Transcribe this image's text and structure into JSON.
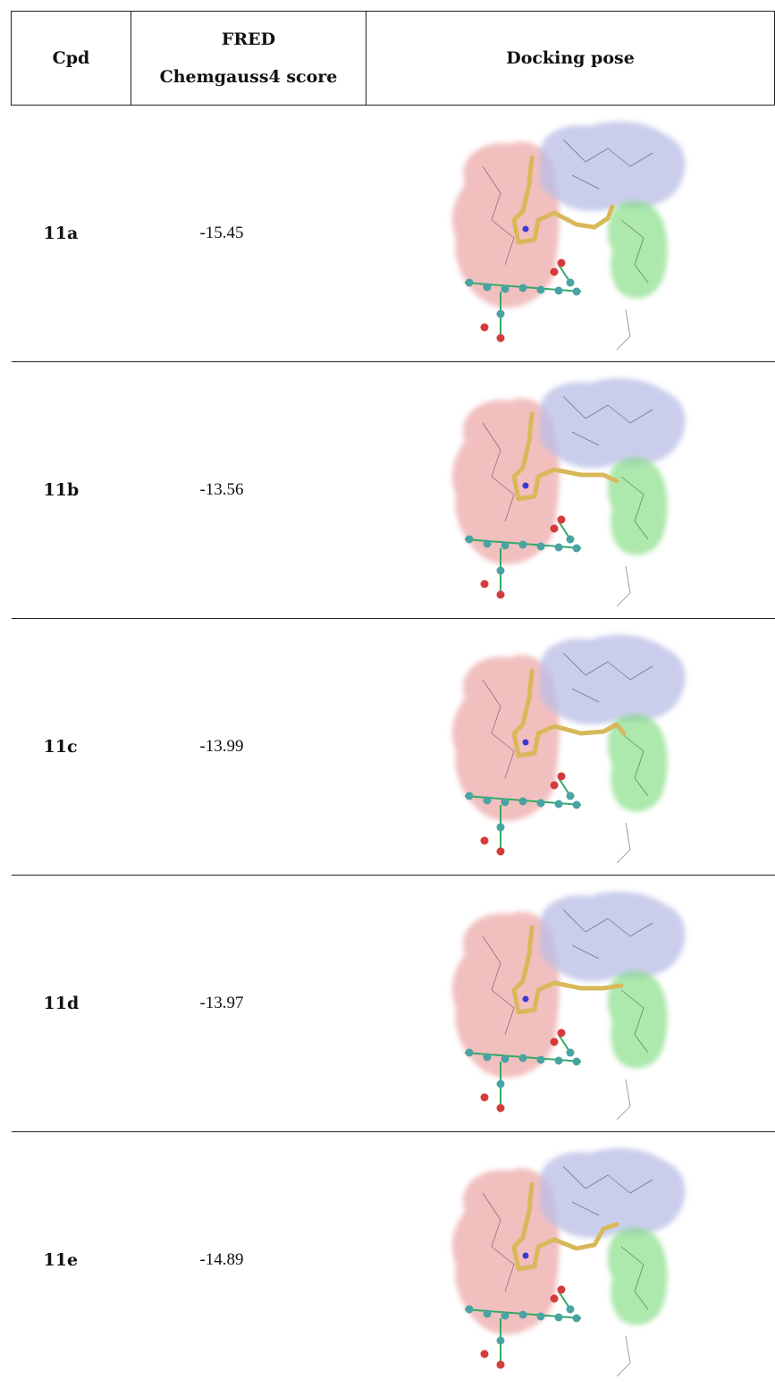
{
  "table": {
    "headers": {
      "cpd": "Cpd",
      "score_line1": "FRED",
      "score_line2": "Chemgauss4 score",
      "pose": "Docking pose"
    },
    "rows": [
      {
        "cpd": "11a",
        "score": "-15.45"
      },
      {
        "cpd": "11b",
        "score": "-13.56"
      },
      {
        "cpd": "11c",
        "score": "-13.99"
      },
      {
        "cpd": "11d",
        "score": "-13.97"
      },
      {
        "cpd": "11e",
        "score": "-14.89"
      }
    ]
  }
}
